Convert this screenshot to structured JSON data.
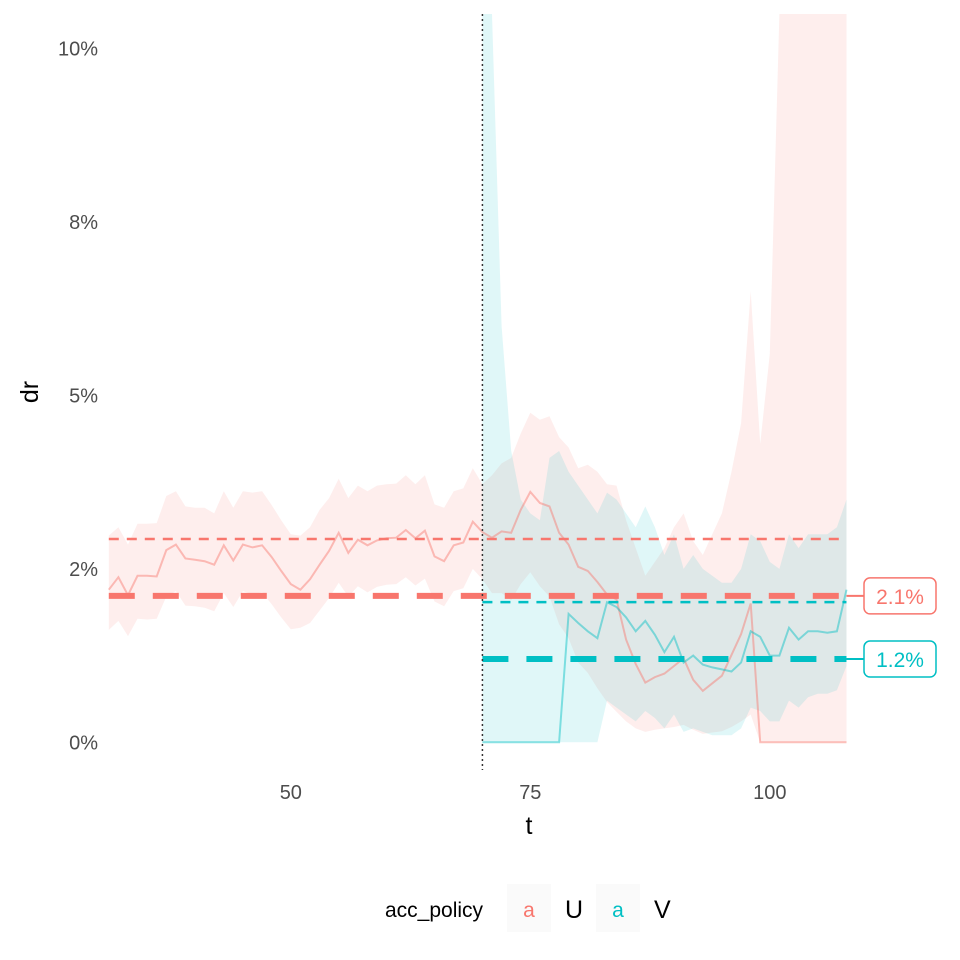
{
  "chart_data": {
    "type": "line",
    "xlabel": "t",
    "ylabel": "dr",
    "x_ticks": [
      50,
      75,
      100
    ],
    "y_ticks": [
      "0%",
      "2%",
      "5%",
      "8%",
      "10%"
    ],
    "y_tick_values": [
      0.0,
      0.025,
      0.05,
      0.075,
      0.1
    ],
    "xlim": [
      30.5,
      111.5
    ],
    "ylim": [
      -0.004,
      0.105
    ],
    "grid": false,
    "intervention_x": 70,
    "legend": {
      "title": "acc_policy",
      "position": "bottom",
      "key_glyph": "a"
    },
    "series": [
      {
        "name": "U",
        "color": "#F8766D",
        "x": [
          31,
          32,
          33,
          34,
          35,
          36,
          37,
          38,
          39,
          40,
          41,
          42,
          43,
          44,
          45,
          46,
          47,
          48,
          49,
          50,
          51,
          52,
          53,
          54,
          55,
          56,
          57,
          58,
          59,
          60,
          61,
          62,
          63,
          64,
          65,
          66,
          67,
          68,
          69,
          70,
          71,
          72,
          73,
          74,
          75,
          76,
          77,
          78,
          79,
          80,
          81,
          82,
          83,
          84,
          85,
          86,
          87,
          88,
          89,
          90,
          91,
          92,
          93,
          94,
          95,
          96,
          97,
          98,
          99,
          100,
          101,
          102,
          103,
          104,
          105,
          106,
          107,
          108
        ],
        "y": [
          0.022,
          0.0238,
          0.0212,
          0.024,
          0.024,
          0.0239,
          0.0277,
          0.0285,
          0.0265,
          0.0263,
          0.0261,
          0.0256,
          0.0284,
          0.0262,
          0.0285,
          0.0281,
          0.0284,
          0.0267,
          0.0247,
          0.0228,
          0.022,
          0.0235,
          0.0256,
          0.0276,
          0.0302,
          0.0273,
          0.0292,
          0.0284,
          0.0291,
          0.0294,
          0.0295,
          0.0306,
          0.0294,
          0.0305,
          0.0268,
          0.0261,
          0.0284,
          0.0288,
          0.0318,
          0.0303,
          0.0295,
          0.0304,
          0.0302,
          0.0335,
          0.0361,
          0.0345,
          0.034,
          0.0302,
          0.0285,
          0.0253,
          0.0247,
          0.0231,
          0.0213,
          0.0206,
          0.0148,
          0.0113,
          0.0086,
          0.0094,
          0.0099,
          0.011,
          0.0121,
          0.009,
          0.0074,
          0.0085,
          0.0096,
          0.0126,
          0.0156,
          0.02,
          0.0,
          0.0,
          0.0,
          0.0,
          0.0,
          0.0,
          0.0,
          0.0,
          0.0,
          0.0
        ],
        "lower": [
          0.0162,
          0.0175,
          0.0153,
          0.0178,
          0.0177,
          0.0178,
          0.021,
          0.0218,
          0.0197,
          0.0196,
          0.0194,
          0.0189,
          0.0215,
          0.0195,
          0.0218,
          0.0213,
          0.0216,
          0.0199,
          0.018,
          0.0163,
          0.0165,
          0.0172,
          0.019,
          0.0208,
          0.023,
          0.021,
          0.0225,
          0.0216,
          0.0224,
          0.0227,
          0.0228,
          0.0238,
          0.0226,
          0.0236,
          0.0203,
          0.0196,
          0.0218,
          0.0222,
          0.025,
          0.0235,
          0.0215,
          0.0215,
          0.0205,
          0.0228,
          0.0245,
          0.0225,
          0.021,
          0.017,
          0.015,
          0.0115,
          0.01,
          0.0078,
          0.0058,
          0.0044,
          0.003,
          0.002,
          0.0015,
          0.0018,
          0.002,
          0.0022,
          0.0025,
          0.0018,
          0.0012,
          0.0014,
          0.0016,
          0.0022,
          0.003,
          0.004,
          0.0,
          0.0,
          0.0,
          0.0,
          0.0,
          0.0,
          0.0,
          0.0,
          0.0,
          0.0
        ],
        "upper": [
          0.0298,
          0.031,
          0.0285,
          0.0315,
          0.0315,
          0.0316,
          0.0355,
          0.0362,
          0.034,
          0.0338,
          0.0338,
          0.033,
          0.0362,
          0.0338,
          0.0362,
          0.036,
          0.0362,
          0.0342,
          0.032,
          0.03,
          0.0298,
          0.031,
          0.0335,
          0.0352,
          0.038,
          0.0352,
          0.037,
          0.0362,
          0.037,
          0.0372,
          0.0373,
          0.0385,
          0.0372,
          0.0385,
          0.0343,
          0.0338,
          0.0362,
          0.0366,
          0.0395,
          0.0372,
          0.0385,
          0.0402,
          0.041,
          0.0445,
          0.0475,
          0.0465,
          0.047,
          0.044,
          0.0425,
          0.0395,
          0.04,
          0.039,
          0.0372,
          0.037,
          0.032,
          0.028,
          0.024,
          0.026,
          0.028,
          0.031,
          0.033,
          0.029,
          0.027,
          0.03,
          0.033,
          0.039,
          0.046,
          0.065,
          0.043,
          0.056,
          0.105,
          0.105,
          0.105,
          0.105,
          0.105,
          0.105,
          0.105,
          0.105
        ],
        "pre_mean": 0.0293,
        "estimate": 0.0211,
        "label": "2.1%"
      },
      {
        "name": "V",
        "color": "#00BFC4",
        "x": [
          70,
          71,
          72,
          73,
          74,
          75,
          76,
          77,
          78,
          79,
          80,
          81,
          82,
          83,
          84,
          85,
          86,
          87,
          88,
          89,
          90,
          91,
          92,
          93,
          94,
          95,
          96,
          97,
          98,
          99,
          100,
          101,
          102,
          103,
          104,
          105,
          106,
          107,
          108
        ],
        "y": [
          0.0,
          0.0,
          0.0,
          0.0,
          0.0,
          0.0,
          0.0,
          0.0,
          0.0,
          0.0185,
          0.0172,
          0.016,
          0.015,
          0.0202,
          0.0195,
          0.018,
          0.016,
          0.0175,
          0.0155,
          0.013,
          0.0152,
          0.0115,
          0.0125,
          0.0112,
          0.0108,
          0.0105,
          0.0102,
          0.0115,
          0.016,
          0.0152,
          0.0125,
          0.0125,
          0.0165,
          0.0148,
          0.016,
          0.016,
          0.0158,
          0.016,
          0.022
        ],
        "lower": [
          0.0,
          0.0,
          0.0,
          0.0,
          0.0,
          0.0,
          0.0,
          0.0,
          0.0,
          0.0,
          0.0,
          0.0,
          0.0,
          0.006,
          0.005,
          0.004,
          0.003,
          0.0045,
          0.0035,
          0.002,
          0.004,
          0.0015,
          0.002,
          0.0015,
          0.001,
          0.001,
          0.001,
          0.002,
          0.005,
          0.0045,
          0.003,
          0.003,
          0.006,
          0.005,
          0.0065,
          0.007,
          0.007,
          0.0075,
          0.011
        ],
        "upper": [
          0.105,
          0.105,
          0.06,
          0.042,
          0.035,
          0.033,
          0.032,
          0.041,
          0.042,
          0.039,
          0.037,
          0.035,
          0.033,
          0.036,
          0.035,
          0.033,
          0.031,
          0.034,
          0.031,
          0.027,
          0.03,
          0.025,
          0.027,
          0.025,
          0.024,
          0.023,
          0.023,
          0.025,
          0.03,
          0.029,
          0.026,
          0.025,
          0.03,
          0.028,
          0.03,
          0.03,
          0.03,
          0.031,
          0.035
        ],
        "pre_mean": 0.0202,
        "estimate": 0.012,
        "label": "1.2%"
      }
    ]
  }
}
